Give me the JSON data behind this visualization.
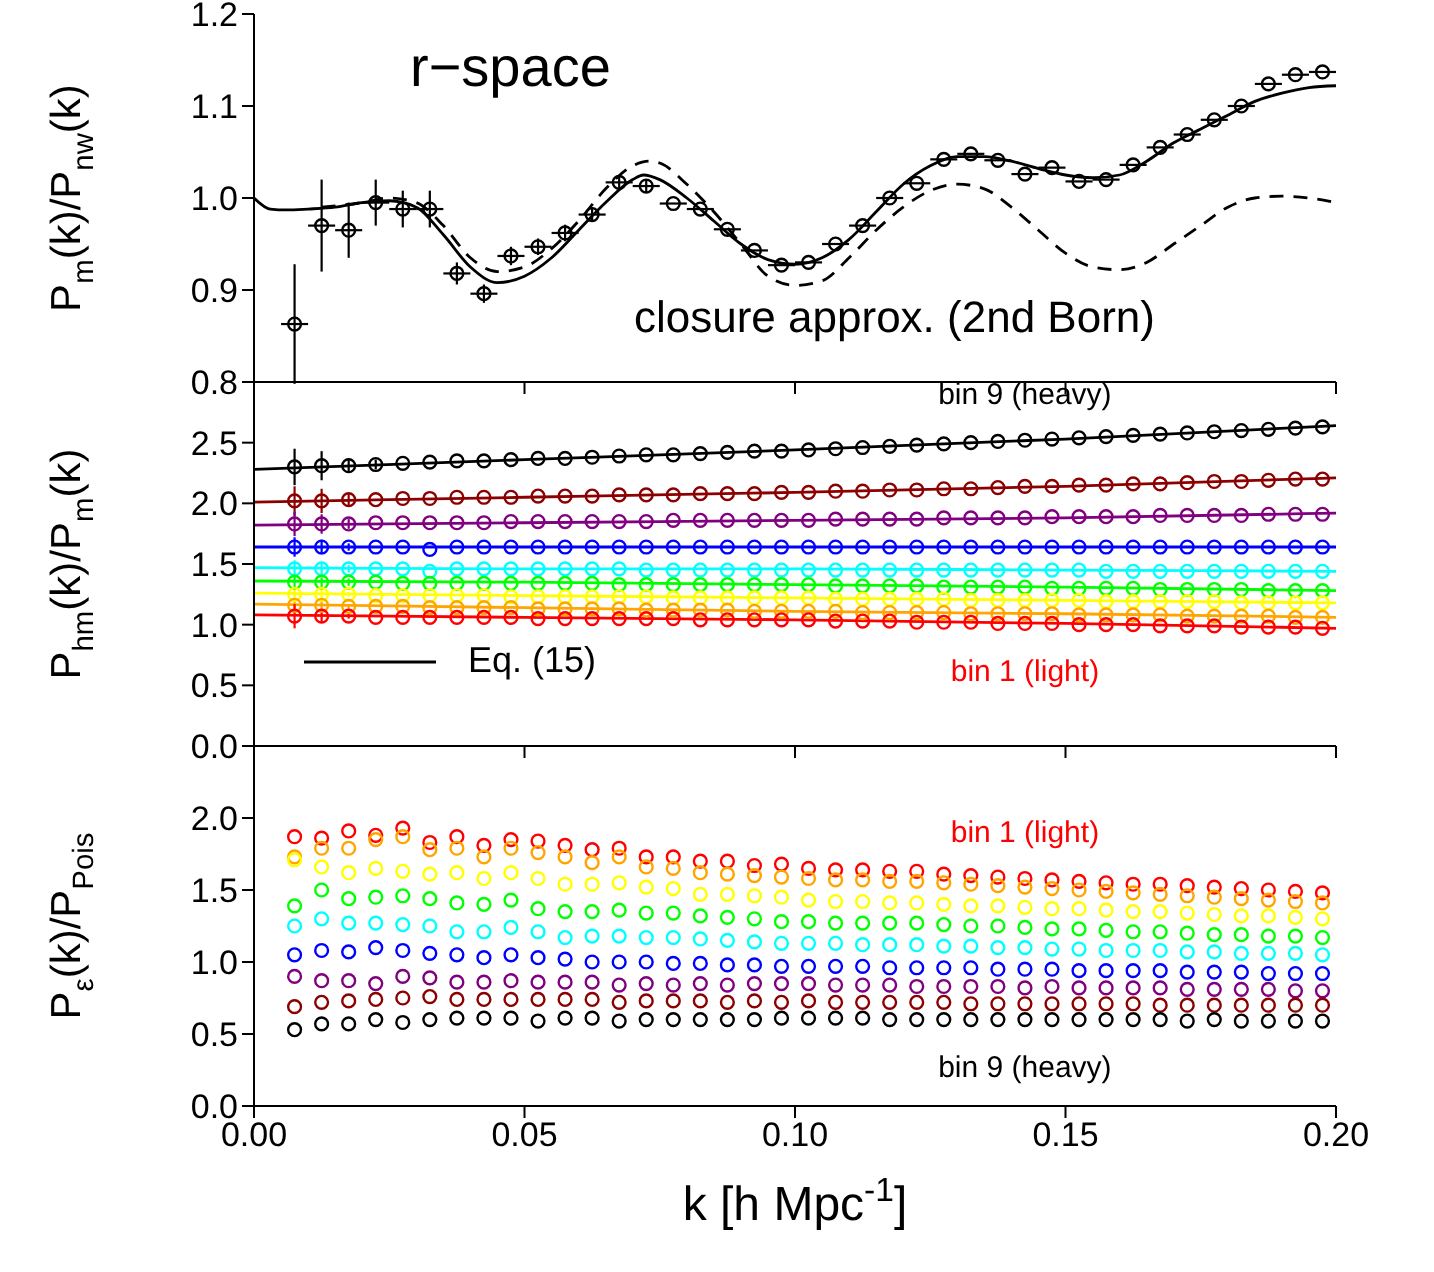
{
  "chart_data": [
    {
      "type": "scatter",
      "ylabel": "P$_{m}$(k)/P$_{nw}$(k)",
      "annotations": [
        "r−space",
        "closure approx. (2nd Born)"
      ],
      "xlim": [
        0,
        0.2
      ],
      "xticks": [
        0,
        0.05,
        0.1,
        0.15,
        0.2
      ],
      "ylim": [
        0.8,
        1.2
      ],
      "yticks": [
        0.8,
        0.9,
        {
          "value": 1,
          "label": "1.0"
        },
        1.1,
        1.2
      ],
      "tick_labels": "y",
      "series": [
        {
          "type": "line",
          "color": "#000000",
          "line_style": "solid",
          "x": [
            0,
            0.003,
            0.006,
            0.01,
            0.015,
            0.02,
            0.025,
            0.03,
            0.035,
            0.04,
            0.045,
            0.05,
            0.055,
            0.06,
            0.065,
            0.07,
            0.072,
            0.075,
            0.08,
            0.085,
            0.09,
            0.095,
            0.1,
            0.105,
            0.11,
            0.115,
            0.12,
            0.125,
            0.13,
            0.135,
            0.14,
            0.145,
            0.15,
            0.155,
            0.16,
            0.165,
            0.17,
            0.175,
            0.18,
            0.185,
            0.19,
            0.195,
            0.2
          ],
          "values": [
            1.0,
            0.988,
            0.987,
            0.988,
            0.99,
            0.995,
            0.997,
            0.99,
            0.96,
            0.925,
            0.908,
            0.915,
            0.935,
            0.965,
            0.995,
            1.02,
            1.025,
            1.02,
            1.0,
            0.975,
            0.95,
            0.933,
            0.928,
            0.935,
            0.955,
            0.985,
            1.015,
            1.035,
            1.045,
            1.045,
            1.04,
            1.032,
            1.025,
            1.022,
            1.025,
            1.04,
            1.06,
            1.075,
            1.09,
            1.105,
            1.114,
            1.12,
            1.122
          ]
        },
        {
          "type": "line",
          "color": "#000000",
          "line_style": "dashed",
          "x": [
            0.0125,
            0.02,
            0.025,
            0.03,
            0.035,
            0.04,
            0.045,
            0.05,
            0.055,
            0.06,
            0.065,
            0.07,
            0.073,
            0.075,
            0.08,
            0.085,
            0.09,
            0.095,
            0.1,
            0.105,
            0.11,
            0.115,
            0.12,
            0.125,
            0.13,
            0.135,
            0.14,
            0.145,
            0.15,
            0.155,
            0.16,
            0.165,
            0.17,
            0.175,
            0.18,
            0.185,
            0.19,
            0.195,
            0.2
          ],
          "values": [
            0.99,
            0.995,
            1.0,
            0.995,
            0.97,
            0.935,
            0.92,
            0.925,
            0.945,
            0.975,
            1.01,
            1.035,
            1.04,
            1.038,
            1.015,
            0.985,
            0.95,
            0.915,
            0.905,
            0.91,
            0.935,
            0.965,
            0.99,
            1.008,
            1.015,
            1.01,
            0.99,
            0.965,
            0.94,
            0.925,
            0.922,
            0.93,
            0.95,
            0.97,
            0.99,
            1.0,
            1.002,
            1.0,
            0.995
          ]
        },
        {
          "marker": "circle",
          "color": "#000000",
          "x": [
            0.0075,
            0.0125,
            0.0175,
            0.0225,
            0.0275,
            0.0325,
            0.0375,
            0.0425,
            0.0475,
            0.0525,
            0.0575,
            0.0625,
            0.0675,
            0.0725,
            0.0775,
            0.0825,
            0.0875,
            0.0925,
            0.0975,
            0.1025,
            0.1075,
            0.1125,
            0.1175,
            0.1225,
            0.1275,
            0.1325,
            0.1375,
            0.1425,
            0.1475,
            0.1525,
            0.1575,
            0.1625,
            0.1675,
            0.1725,
            0.1775,
            0.1825,
            0.1875,
            0.1925,
            0.1975
          ],
          "values": [
            0.863,
            0.97,
            0.965,
            0.995,
            0.988,
            0.988,
            0.918,
            0.896,
            0.937,
            0.947,
            0.962,
            0.982,
            1.017,
            1.013,
            0.994,
            0.988,
            0.966,
            0.943,
            0.927,
            0.93,
            0.95,
            0.97,
            1.0,
            1.016,
            1.042,
            1.048,
            1.041,
            1.026,
            1.033,
            1.018,
            1.02,
            1.036,
            1.055,
            1.069,
            1.085,
            1.1,
            1.124,
            1.134,
            1.137
          ],
          "errors": [
            0.065,
            0.05,
            0.03,
            0.025,
            0.02,
            0.02,
            0.012,
            0.01,
            0.01,
            0.009,
            0.009,
            0.008,
            0.008,
            0.007,
            null,
            null,
            null,
            null,
            null,
            null,
            null,
            null,
            null,
            null,
            null,
            null,
            null,
            null,
            null,
            null,
            null,
            null,
            null,
            null,
            null,
            null,
            null,
            null,
            null
          ],
          "xerrors": [
            0.0025,
            0.0025,
            0.0025,
            0.0025,
            0.0025,
            0.0025,
            0.0025,
            0.0025,
            0.0025,
            0.0025,
            0.0025,
            0.0025,
            0.0025,
            0.0025,
            0.0025,
            0.0025,
            0.0025,
            0.0025,
            0.0025,
            0.0025,
            0.0025,
            0.0025,
            0.0025,
            0.0025,
            0.0025,
            0.0025,
            0.0025,
            0.0025,
            0.0025,
            0.0025,
            0.0025,
            0.0025,
            0.0025,
            0.0025,
            0.0025,
            0.0025,
            0.0025,
            0.0025,
            0.0025
          ]
        }
      ]
    },
    {
      "type": "scatter",
      "ylabel": "P$_{hm}$(k)/P$_{m}$(k)",
      "xlim": [
        0,
        0.2
      ],
      "xticks": [
        0,
        0.05,
        0.1,
        0.15,
        0.2
      ],
      "ylim": [
        0,
        3
      ],
      "yticks": [
        {
          "value": 0,
          "label": "0.0"
        },
        0.5,
        {
          "value": 1,
          "label": "1.0"
        },
        1.5,
        {
          "value": 2,
          "label": "2.0"
        },
        2.5
      ],
      "tick_labels": "y",
      "legend": "bottom left",
      "x": [
        0.0075,
        0.0125,
        0.0175,
        0.0225,
        0.0275,
        0.0325,
        0.0375,
        0.0425,
        0.0475,
        0.0525,
        0.0575,
        0.0625,
        0.0675,
        0.0725,
        0.0775,
        0.0825,
        0.0875,
        0.0925,
        0.0975,
        0.1025,
        0.1075,
        0.1125,
        0.1175,
        0.1225,
        0.1275,
        0.1325,
        0.1375,
        0.1425,
        0.1475,
        0.1525,
        0.1575,
        0.1625,
        0.1675,
        0.1725,
        0.1775,
        0.1825,
        0.1875,
        0.1925,
        0.1975
      ],
      "series": [
        {
          "type": "line",
          "name": "Eq. (15)",
          "color": "#000000",
          "x": [
            0,
            0.05,
            0.1,
            0.15,
            0.2
          ],
          "values": [
            2.28,
            2.36,
            2.44,
            2.53,
            2.64
          ]
        },
        {
          "type": "line",
          "color": "#8b0000",
          "x": [
            0,
            0.05,
            0.1,
            0.15,
            0.2
          ],
          "values": [
            2.01,
            2.05,
            2.09,
            2.14,
            2.21
          ]
        },
        {
          "type": "line",
          "color": "#800080",
          "x": [
            0,
            0.05,
            0.1,
            0.15,
            0.2
          ],
          "values": [
            1.82,
            1.84,
            1.86,
            1.88,
            1.92
          ]
        },
        {
          "type": "line",
          "color": "#0000ff",
          "x": [
            0,
            0.05,
            0.1,
            0.15,
            0.2
          ],
          "values": [
            1.64,
            1.64,
            1.64,
            1.64,
            1.64
          ]
        },
        {
          "type": "line",
          "color": "#00ffff",
          "x": [
            0,
            0.05,
            0.1,
            0.15,
            0.2
          ],
          "values": [
            1.47,
            1.46,
            1.46,
            1.45,
            1.44
          ]
        },
        {
          "type": "line",
          "color": "#00ff00",
          "x": [
            0,
            0.05,
            0.1,
            0.15,
            0.2
          ],
          "values": [
            1.36,
            1.35,
            1.33,
            1.31,
            1.28
          ]
        },
        {
          "type": "line",
          "color": "#ffff00",
          "x": [
            0,
            0.05,
            0.1,
            0.15,
            0.2
          ],
          "values": [
            1.26,
            1.24,
            1.22,
            1.2,
            1.18
          ]
        },
        {
          "type": "line",
          "color": "#ffa500",
          "x": [
            0,
            0.05,
            0.1,
            0.15,
            0.2
          ],
          "values": [
            1.17,
            1.14,
            1.11,
            1.09,
            1.06
          ]
        },
        {
          "type": "line",
          "color": "#ff0000",
          "x": [
            0,
            0.05,
            0.1,
            0.15,
            0.2
          ],
          "values": [
            1.08,
            1.06,
            1.04,
            1.01,
            0.97
          ]
        },
        {
          "marker": "circle",
          "name": "bin 9 (heavy)",
          "color": "#000000",
          "values": [
            2.3,
            2.31,
            2.31,
            2.32,
            2.33,
            2.34,
            2.35,
            2.35,
            2.36,
            2.37,
            2.37,
            2.38,
            2.39,
            2.4,
            2.4,
            2.41,
            2.42,
            2.43,
            2.43,
            2.44,
            2.45,
            2.46,
            2.47,
            2.48,
            2.49,
            2.5,
            2.51,
            2.52,
            2.53,
            2.54,
            2.55,
            2.56,
            2.57,
            2.58,
            2.59,
            2.6,
            2.61,
            2.62,
            2.63
          ],
          "errors": [
            0.15,
            0.12,
            0.06,
            0.04,
            null,
            null,
            null,
            null,
            null,
            null,
            null,
            null,
            null,
            null,
            null,
            null,
            null,
            null,
            null,
            null,
            null,
            null,
            null,
            null,
            null,
            null,
            null,
            null,
            null,
            null,
            null,
            null,
            null,
            null,
            null,
            null,
            null,
            null,
            null
          ]
        },
        {
          "marker": "circle",
          "color": "#8b0000",
          "values": [
            2.02,
            2.02,
            2.03,
            2.03,
            2.04,
            2.04,
            2.05,
            2.05,
            2.05,
            2.06,
            2.06,
            2.06,
            2.07,
            2.07,
            2.07,
            2.08,
            2.08,
            2.08,
            2.09,
            2.09,
            2.1,
            2.1,
            2.11,
            2.11,
            2.12,
            2.12,
            2.13,
            2.14,
            2.14,
            2.15,
            2.15,
            2.16,
            2.16,
            2.17,
            2.18,
            2.18,
            2.19,
            2.2,
            2.2
          ],
          "errors": [
            0.12,
            0.1,
            0.05,
            null,
            null,
            null,
            null,
            null,
            null,
            null,
            null,
            null,
            null,
            null,
            null,
            null,
            null,
            null,
            null,
            null,
            null,
            null,
            null,
            null,
            null,
            null,
            null,
            null,
            null,
            null,
            null,
            null,
            null,
            null,
            null,
            null,
            null,
            null,
            null
          ]
        },
        {
          "marker": "circle",
          "color": "#800080",
          "values": [
            1.83,
            1.83,
            1.83,
            1.84,
            1.84,
            1.84,
            1.84,
            1.84,
            1.85,
            1.85,
            1.85,
            1.85,
            1.85,
            1.85,
            1.86,
            1.86,
            1.86,
            1.86,
            1.86,
            1.86,
            1.87,
            1.87,
            1.87,
            1.87,
            1.88,
            1.88,
            1.88,
            1.88,
            1.89,
            1.89,
            1.89,
            1.89,
            1.9,
            1.9,
            1.9,
            1.9,
            1.91,
            1.91,
            1.91
          ],
          "errors": [
            0.1,
            0.08,
            0.04,
            null,
            null,
            null,
            null,
            null,
            null,
            null,
            null,
            null,
            null,
            null,
            null,
            null,
            null,
            null,
            null,
            null,
            null,
            null,
            null,
            null,
            null,
            null,
            null,
            null,
            null,
            null,
            null,
            null,
            null,
            null,
            null,
            null,
            null,
            null,
            null
          ]
        },
        {
          "marker": "circle",
          "color": "#0000ff",
          "values": [
            1.64,
            1.64,
            1.64,
            1.64,
            1.64,
            1.62,
            1.64,
            1.64,
            1.64,
            1.64,
            1.64,
            1.64,
            1.64,
            1.64,
            1.64,
            1.64,
            1.64,
            1.64,
            1.64,
            1.64,
            1.64,
            1.64,
            1.64,
            1.64,
            1.64,
            1.64,
            1.64,
            1.64,
            1.64,
            1.64,
            1.64,
            1.64,
            1.64,
            1.64,
            1.64,
            1.64,
            1.64,
            1.64,
            1.64
          ],
          "errors": [
            0.08,
            0.06,
            0.03,
            null,
            null,
            null,
            null,
            null,
            null,
            null,
            null,
            null,
            null,
            null,
            null,
            null,
            null,
            null,
            null,
            null,
            null,
            null,
            null,
            null,
            null,
            null,
            null,
            null,
            null,
            null,
            null,
            null,
            null,
            null,
            null,
            null,
            null,
            null,
            null
          ]
        },
        {
          "marker": "circle",
          "color": "#00ffff",
          "values": [
            1.46,
            1.46,
            1.46,
            1.46,
            1.46,
            1.44,
            1.46,
            1.46,
            1.46,
            1.46,
            1.46,
            1.46,
            1.46,
            1.45,
            1.45,
            1.45,
            1.45,
            1.45,
            1.45,
            1.45,
            1.45,
            1.45,
            1.45,
            1.45,
            1.45,
            1.45,
            1.45,
            1.45,
            1.45,
            1.45,
            1.44,
            1.44,
            1.44,
            1.44,
            1.44,
            1.44,
            1.44,
            1.44,
            1.44
          ],
          "errors": [
            0.07,
            0.05,
            0.03,
            null,
            null,
            null,
            null,
            null,
            null,
            null,
            null,
            null,
            null,
            null,
            null,
            null,
            null,
            null,
            null,
            null,
            null,
            null,
            null,
            null,
            null,
            null,
            null,
            null,
            null,
            null,
            null,
            null,
            null,
            null,
            null,
            null,
            null,
            null,
            null
          ]
        },
        {
          "marker": "circle",
          "color": "#00ff00",
          "values": [
            1.35,
            1.35,
            1.35,
            1.35,
            1.34,
            1.34,
            1.34,
            1.34,
            1.34,
            1.34,
            1.34,
            1.34,
            1.33,
            1.33,
            1.33,
            1.33,
            1.33,
            1.33,
            1.33,
            1.33,
            1.32,
            1.32,
            1.32,
            1.32,
            1.31,
            1.31,
            1.31,
            1.31,
            1.3,
            1.3,
            1.3,
            1.3,
            1.29,
            1.29,
            1.29,
            1.29,
            1.28,
            1.28,
            1.28
          ],
          "errors": [
            0.06,
            0.04,
            0.03,
            null,
            null,
            null,
            null,
            null,
            null,
            null,
            null,
            null,
            null,
            null,
            null,
            null,
            null,
            null,
            null,
            null,
            null,
            null,
            null,
            null,
            null,
            null,
            null,
            null,
            null,
            null,
            null,
            null,
            null,
            null,
            null,
            null,
            null,
            null,
            null
          ]
        },
        {
          "marker": "circle",
          "color": "#ffff00",
          "values": [
            1.25,
            1.25,
            1.25,
            1.24,
            1.24,
            1.24,
            1.24,
            1.24,
            1.23,
            1.23,
            1.23,
            1.23,
            1.23,
            1.23,
            1.22,
            1.22,
            1.22,
            1.22,
            1.22,
            1.22,
            1.21,
            1.21,
            1.21,
            1.21,
            1.21,
            1.2,
            1.2,
            1.2,
            1.2,
            1.2,
            1.19,
            1.19,
            1.19,
            1.19,
            1.19,
            1.18,
            1.18,
            1.18,
            1.18
          ],
          "errors": [
            0.06,
            0.04,
            0.02,
            null,
            null,
            null,
            null,
            null,
            null,
            null,
            null,
            null,
            null,
            null,
            null,
            null,
            null,
            null,
            null,
            null,
            null,
            null,
            null,
            null,
            null,
            null,
            null,
            null,
            null,
            null,
            null,
            null,
            null,
            null,
            null,
            null,
            null,
            null,
            null
          ]
        },
        {
          "marker": "circle",
          "color": "#ffa500",
          "values": [
            1.16,
            1.16,
            1.15,
            1.15,
            1.15,
            1.14,
            1.14,
            1.14,
            1.14,
            1.13,
            1.13,
            1.13,
            1.13,
            1.12,
            1.12,
            1.12,
            1.12,
            1.11,
            1.11,
            1.11,
            1.11,
            1.1,
            1.1,
            1.1,
            1.1,
            1.09,
            1.09,
            1.09,
            1.09,
            1.08,
            1.08,
            1.08,
            1.08,
            1.07,
            1.07,
            1.07,
            1.07,
            1.06,
            1.06
          ],
          "errors": [
            0.06,
            0.04,
            0.02,
            null,
            null,
            null,
            null,
            null,
            null,
            null,
            null,
            null,
            null,
            null,
            null,
            null,
            null,
            null,
            null,
            null,
            null,
            null,
            null,
            null,
            null,
            null,
            null,
            null,
            null,
            null,
            null,
            null,
            null,
            null,
            null,
            null,
            null,
            null,
            null
          ]
        },
        {
          "marker": "circle",
          "name": "bin 1 (light)",
          "color": "#ff0000",
          "values": [
            1.07,
            1.07,
            1.07,
            1.06,
            1.06,
            1.06,
            1.06,
            1.06,
            1.06,
            1.05,
            1.05,
            1.05,
            1.05,
            1.05,
            1.05,
            1.04,
            1.04,
            1.04,
            1.04,
            1.04,
            1.03,
            1.03,
            1.03,
            1.02,
            1.02,
            1.02,
            1.01,
            1.01,
            1.01,
            1.0,
            1.0,
            1.0,
            0.99,
            0.99,
            0.99,
            0.98,
            0.98,
            0.98,
            0.97
          ],
          "errors": [
            0.1,
            0.05,
            0.02,
            null,
            null,
            null,
            null,
            null,
            null,
            null,
            null,
            null,
            null,
            null,
            null,
            null,
            null,
            null,
            null,
            null,
            null,
            null,
            null,
            null,
            null,
            null,
            null,
            null,
            null,
            null,
            null,
            null,
            null,
            null,
            null,
            null,
            null,
            null,
            null
          ]
        }
      ]
    },
    {
      "type": "scatter",
      "ylabel": "P$_{ε}$(k)/P$_{Pois}$",
      "xlabel": "k [h Mpc$^{-1}$]",
      "xlim": [
        0,
        0.2
      ],
      "xticks": [
        {
          "value": 0,
          "label": "0.00"
        },
        {
          "value": 0.05,
          "label": "0.05"
        },
        {
          "value": 0.1,
          "label": "0.10"
        },
        {
          "value": 0.15,
          "label": "0.15"
        },
        {
          "value": 0.2,
          "label": "0.20"
        }
      ],
      "ylim": [
        0,
        2.5
      ],
      "yticks": [
        {
          "value": 0,
          "label": "0.0"
        },
        0.5,
        {
          "value": 1,
          "label": "1.0"
        },
        1.5,
        {
          "value": 2,
          "label": "2.0"
        }
      ],
      "marker": "circle",
      "x": [
        0.0075,
        0.0125,
        0.0175,
        0.0225,
        0.0275,
        0.0325,
        0.0375,
        0.0425,
        0.0475,
        0.0525,
        0.0575,
        0.0625,
        0.0675,
        0.0725,
        0.0775,
        0.0825,
        0.0875,
        0.0925,
        0.0975,
        0.1025,
        0.1075,
        0.1125,
        0.1175,
        0.1225,
        0.1275,
        0.1325,
        0.1375,
        0.1425,
        0.1475,
        0.1525,
        0.1575,
        0.1625,
        0.1675,
        0.1725,
        0.1775,
        0.1825,
        0.1875,
        0.1925,
        0.1975
      ],
      "series": [
        {
          "name": "bin 1 (light)",
          "color": "#ff0000",
          "values": [
            1.87,
            1.86,
            1.91,
            1.88,
            1.93,
            1.83,
            1.87,
            1.81,
            1.85,
            1.84,
            1.81,
            1.78,
            1.79,
            1.73,
            1.73,
            1.7,
            1.7,
            1.67,
            1.68,
            1.65,
            1.64,
            1.64,
            1.63,
            1.63,
            1.61,
            1.6,
            1.59,
            1.58,
            1.57,
            1.56,
            1.55,
            1.54,
            1.54,
            1.53,
            1.52,
            1.51,
            1.5,
            1.49,
            1.48
          ]
        },
        {
          "color": "#ffa500",
          "values": [
            1.73,
            1.79,
            1.79,
            1.85,
            1.87,
            1.78,
            1.79,
            1.73,
            1.79,
            1.76,
            1.73,
            1.69,
            1.73,
            1.66,
            1.65,
            1.62,
            1.61,
            1.6,
            1.59,
            1.58,
            1.57,
            1.57,
            1.56,
            1.56,
            1.55,
            1.54,
            1.53,
            1.52,
            1.51,
            1.5,
            1.49,
            1.48,
            1.47,
            1.46,
            1.45,
            1.44,
            1.43,
            1.42,
            1.41
          ]
        },
        {
          "color": "#ffff00",
          "values": [
            1.71,
            1.66,
            1.62,
            1.65,
            1.63,
            1.61,
            1.62,
            1.58,
            1.62,
            1.58,
            1.54,
            1.54,
            1.55,
            1.52,
            1.51,
            1.47,
            1.47,
            1.46,
            1.45,
            1.43,
            1.42,
            1.42,
            1.41,
            1.41,
            1.4,
            1.39,
            1.39,
            1.38,
            1.37,
            1.37,
            1.36,
            1.35,
            1.35,
            1.34,
            1.33,
            1.32,
            1.32,
            1.31,
            1.3
          ]
        },
        {
          "color": "#00ff00",
          "values": [
            1.39,
            1.5,
            1.44,
            1.45,
            1.46,
            1.44,
            1.41,
            1.4,
            1.43,
            1.37,
            1.35,
            1.35,
            1.36,
            1.34,
            1.34,
            1.32,
            1.31,
            1.3,
            1.28,
            1.28,
            1.27,
            1.27,
            1.27,
            1.27,
            1.26,
            1.25,
            1.25,
            1.24,
            1.23,
            1.23,
            1.22,
            1.21,
            1.21,
            1.2,
            1.19,
            1.19,
            1.18,
            1.18,
            1.17
          ]
        },
        {
          "color": "#00ffff",
          "values": [
            1.25,
            1.3,
            1.27,
            1.27,
            1.26,
            1.25,
            1.21,
            1.21,
            1.24,
            1.21,
            1.17,
            1.18,
            1.18,
            1.17,
            1.17,
            1.16,
            1.15,
            1.14,
            1.13,
            1.13,
            1.13,
            1.12,
            1.12,
            1.12,
            1.11,
            1.11,
            1.1,
            1.1,
            1.09,
            1.09,
            1.08,
            1.08,
            1.08,
            1.07,
            1.07,
            1.06,
            1.06,
            1.06,
            1.05
          ]
        },
        {
          "color": "#0000ff",
          "values": [
            1.05,
            1.08,
            1.07,
            1.1,
            1.08,
            1.06,
            1.05,
            1.03,
            1.05,
            1.03,
            1.02,
            1.0,
            1.0,
            1.0,
            0.99,
            0.99,
            0.98,
            0.98,
            0.97,
            0.97,
            0.97,
            0.97,
            0.96,
            0.96,
            0.96,
            0.96,
            0.95,
            0.95,
            0.95,
            0.94,
            0.94,
            0.94,
            0.94,
            0.93,
            0.93,
            0.93,
            0.92,
            0.92,
            0.92
          ]
        },
        {
          "color": "#800080",
          "values": [
            0.9,
            0.87,
            0.87,
            0.85,
            0.9,
            0.89,
            0.86,
            0.86,
            0.87,
            0.86,
            0.86,
            0.86,
            0.84,
            0.85,
            0.84,
            0.85,
            0.84,
            0.85,
            0.85,
            0.85,
            0.84,
            0.84,
            0.84,
            0.83,
            0.83,
            0.83,
            0.83,
            0.82,
            0.83,
            0.82,
            0.82,
            0.82,
            0.82,
            0.81,
            0.81,
            0.81,
            0.81,
            0.8,
            0.8
          ]
        },
        {
          "color": "#8b0000",
          "values": [
            0.69,
            0.72,
            0.73,
            0.74,
            0.75,
            0.76,
            0.74,
            0.74,
            0.74,
            0.74,
            0.74,
            0.74,
            0.72,
            0.73,
            0.73,
            0.73,
            0.72,
            0.73,
            0.72,
            0.73,
            0.72,
            0.72,
            0.72,
            0.72,
            0.72,
            0.71,
            0.71,
            0.71,
            0.71,
            0.71,
            0.71,
            0.71,
            0.7,
            0.7,
            0.7,
            0.7,
            0.7,
            0.7,
            0.7
          ]
        },
        {
          "name": "bin 9 (heavy)",
          "color": "#000000",
          "values": [
            0.53,
            0.57,
            0.57,
            0.6,
            0.58,
            0.6,
            0.61,
            0.61,
            0.61,
            0.59,
            0.61,
            0.61,
            0.59,
            0.6,
            0.6,
            0.6,
            0.6,
            0.6,
            0.61,
            0.61,
            0.61,
            0.61,
            0.6,
            0.6,
            0.6,
            0.6,
            0.6,
            0.6,
            0.6,
            0.6,
            0.6,
            0.6,
            0.6,
            0.59,
            0.6,
            0.59,
            0.59,
            0.59,
            0.59
          ]
        }
      ]
    }
  ]
}
